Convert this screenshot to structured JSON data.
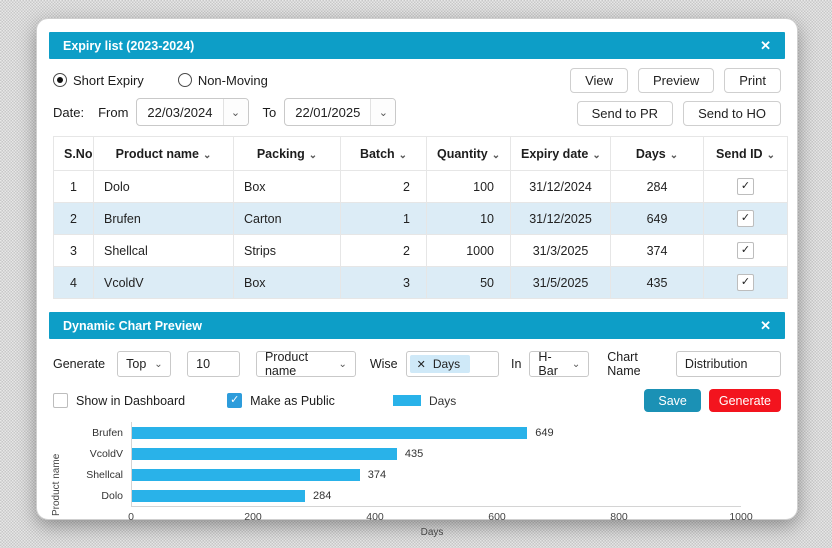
{
  "colors": {
    "panel_header": "#0D9EC7",
    "row_stripe": "#DCECF6",
    "bar": "#29B2E9",
    "save_button": "#1B91B5",
    "generate_button": "#F3141E",
    "checkbox_checked": "#2D9CDB"
  },
  "expiry_panel": {
    "title": "Expiry list (2023-2024)",
    "close_icon": "✕",
    "radios": [
      {
        "label": "Short Expiry",
        "selected": true
      },
      {
        "label": "Non-Moving",
        "selected": false
      }
    ],
    "date": {
      "label": "Date:",
      "from_label": "From",
      "from_value": "22/03/2024",
      "to_label": "To",
      "to_value": "22/01/2025",
      "chevron": "⌄"
    },
    "actions": {
      "view": "View",
      "preview": "Preview",
      "print": "Print",
      "send_pr": "Send to PR",
      "send_ho": "Send to HO"
    },
    "table": {
      "columns": [
        {
          "label": "S.No",
          "sortable": false
        },
        {
          "label": "Product name",
          "sortable": true
        },
        {
          "label": "Packing",
          "sortable": true
        },
        {
          "label": "Batch",
          "sortable": true
        },
        {
          "label": "Quantity",
          "sortable": true
        },
        {
          "label": "Expiry date",
          "sortable": true
        },
        {
          "label": "Days",
          "sortable": true
        },
        {
          "label": "Send ID",
          "sortable": true
        }
      ],
      "sort_chevron": "⌄",
      "rows": [
        {
          "sno": "1",
          "product": "Dolo",
          "packing": "Box",
          "batch": "2",
          "quantity": "100",
          "expiry": "31/12/2024",
          "days": "284",
          "send_id": true
        },
        {
          "sno": "2",
          "product": "Brufen",
          "packing": "Carton",
          "batch": "1",
          "quantity": "10",
          "expiry": "31/12/2025",
          "days": "649",
          "send_id": true
        },
        {
          "sno": "3",
          "product": "Shellcal",
          "packing": "Strips",
          "batch": "2",
          "quantity": "1000",
          "expiry": "31/3/2025",
          "days": "374",
          "send_id": true
        },
        {
          "sno": "4",
          "product": "VcoldV",
          "packing": "Box",
          "batch": "3",
          "quantity": "50",
          "expiry": "31/5/2025",
          "days": "435",
          "send_id": true
        }
      ]
    }
  },
  "chart_panel": {
    "title": "Dynamic Chart Preview",
    "close_icon": "✕",
    "generate_label": "Generate",
    "top_select": "Top",
    "count_value": "10",
    "field_select": "Product name",
    "wise_label": "Wise",
    "wise_chip": {
      "remove_icon": "✕",
      "label": "Days"
    },
    "in_label": "In",
    "type_select": "H-Bar",
    "chart_name_label": "Chart Name",
    "chart_name_value": "Distribution",
    "select_chevron": "⌄",
    "show_in_dashboard": {
      "label": "Show in Dashboard",
      "checked": false
    },
    "make_public": {
      "label": "Make as Public",
      "checked": true
    },
    "legend_label": "Days",
    "save_label": "Save",
    "generate_button_label": "Generate"
  },
  "chart_data": {
    "type": "bar",
    "orientation": "horizontal",
    "categories": [
      "Brufen",
      "VcoldV",
      "Shellcal",
      "Dolo"
    ],
    "values": [
      649,
      435,
      374,
      284
    ],
    "series": [
      {
        "name": "Days",
        "values": [
          649,
          435,
          374,
          284
        ]
      }
    ],
    "title": "",
    "xlabel": "Days",
    "ylabel": "Product name",
    "xlim": [
      0,
      1000
    ],
    "xticks": [
      "0",
      "200",
      "400",
      "600",
      "800",
      "1000"
    ],
    "grid": false,
    "legend_position": "top-center",
    "bar_color": "#29B2E9"
  }
}
